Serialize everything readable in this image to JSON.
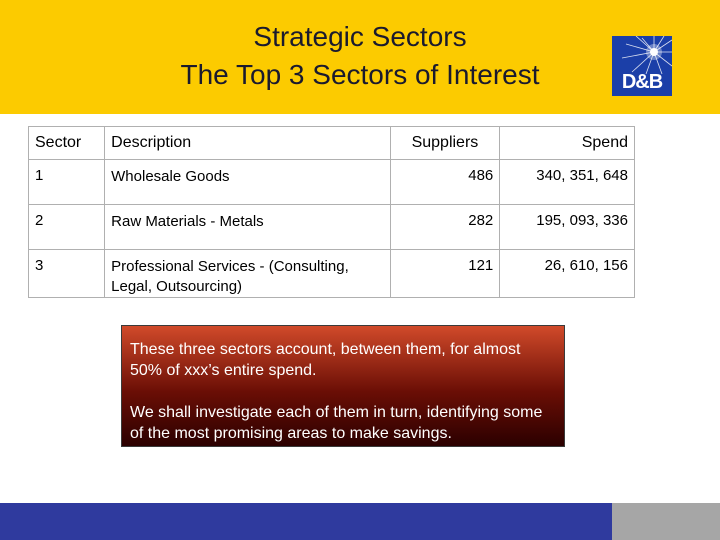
{
  "header": {
    "title_line1": "Strategic Sectors",
    "title_line2": "The Top 3 Sectors of Interest",
    "logo_text": "D&B"
  },
  "table": {
    "columns": [
      "Sector",
      "Description",
      "Suppliers",
      "Spend"
    ],
    "rows": [
      {
        "sector": "1",
        "description": "Wholesale Goods",
        "suppliers": "486",
        "spend": "340, 351, 648"
      },
      {
        "sector": "2",
        "description": "Raw Materials - Metals",
        "suppliers": "282",
        "spend": "195, 093, 336"
      },
      {
        "sector": "3",
        "description": "Professional Services - (Consulting, Legal, Outsourcing)",
        "suppliers": "121",
        "spend": "26, 610, 156"
      }
    ]
  },
  "callout": {
    "paragraph1": "These three sectors account, between them, for almost 50% of xxx’s entire spend.",
    "paragraph2": "We shall investigate each of them in turn, identifying some of the most promising areas to make savings."
  },
  "colors": {
    "header_bg": "#fccb00",
    "logo_bg": "#1b3fa8",
    "footer_bar": "#2f3a9e",
    "footer_gray": "#a6a6a6",
    "callout_top": "#d14a2a",
    "callout_bottom": "#2b0000"
  }
}
